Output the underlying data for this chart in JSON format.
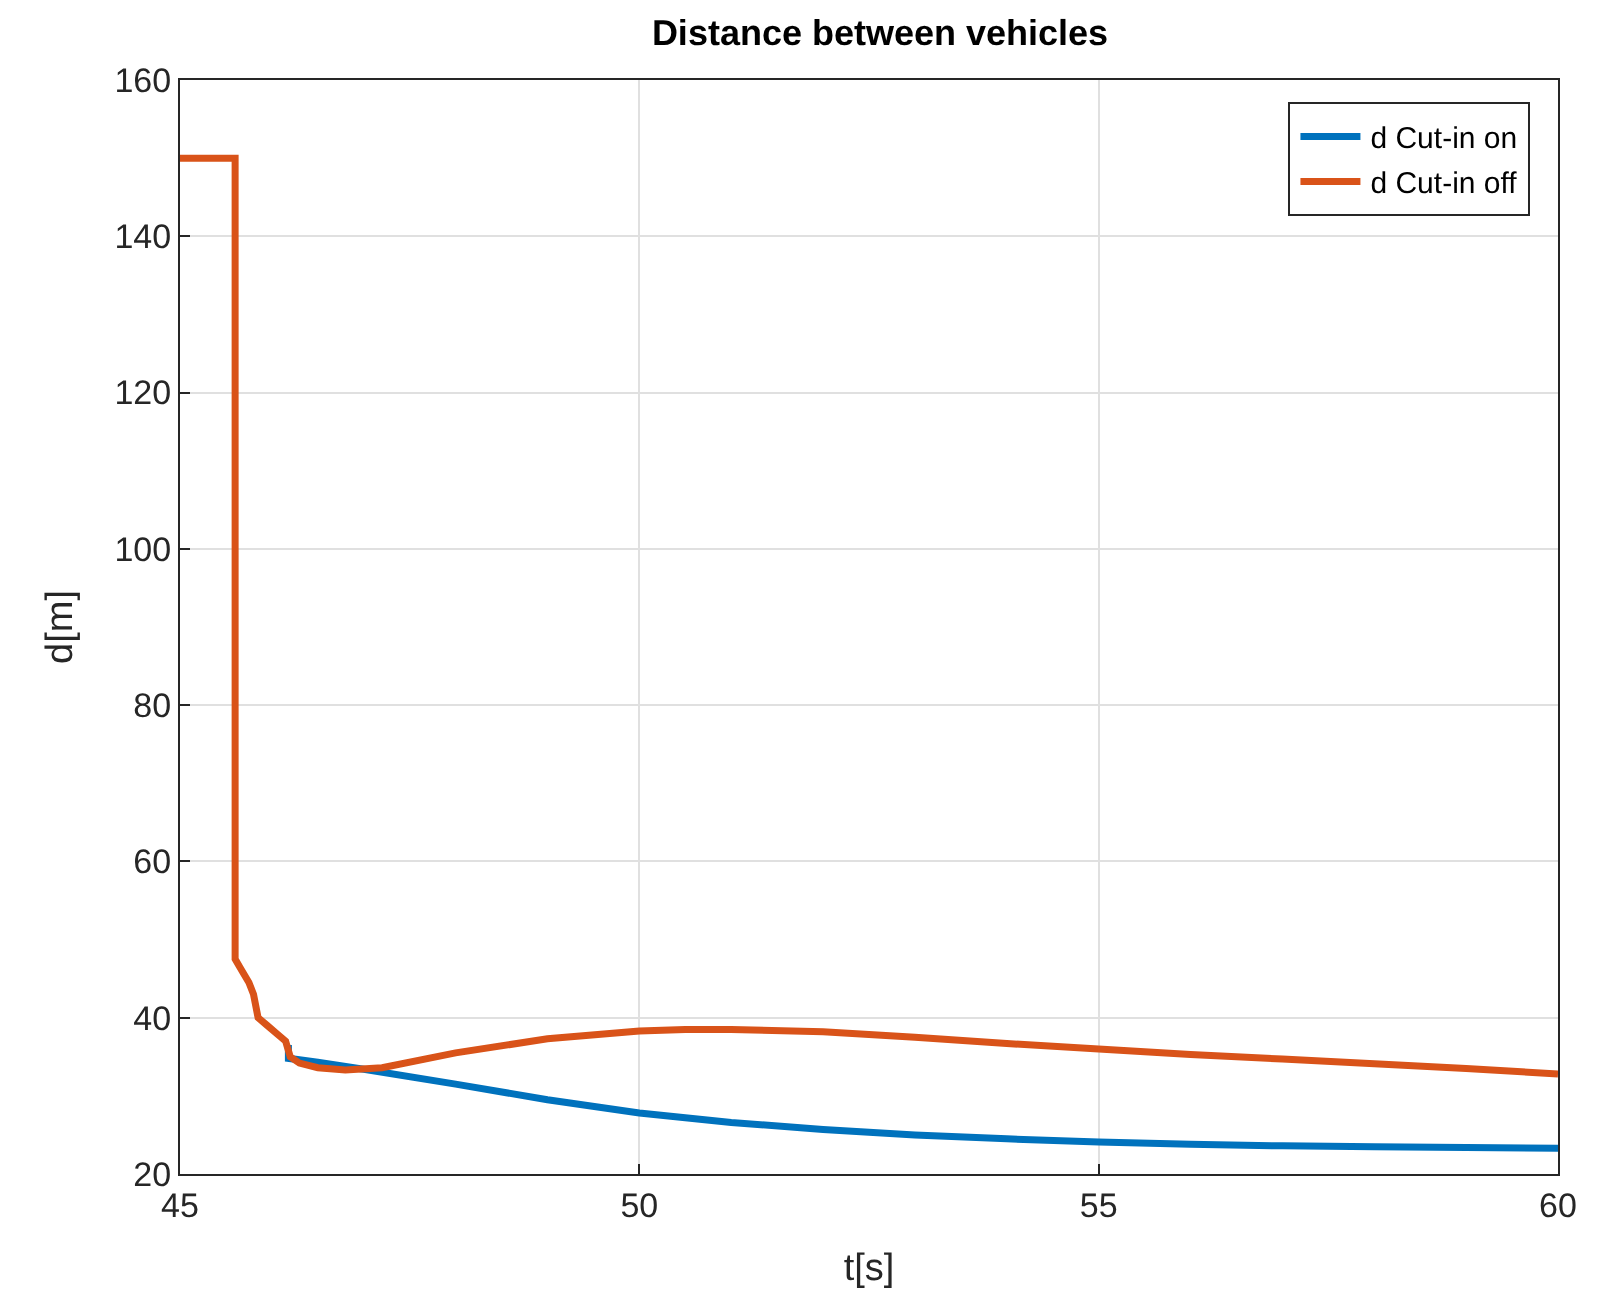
{
  "chart_data": {
    "type": "line",
    "title": "Distance between vehicles",
    "xlabel": "t[s]",
    "ylabel": "d[m]",
    "xlim": [
      45,
      60
    ],
    "xticks": [
      45,
      50,
      55,
      60
    ],
    "ylim": [
      20,
      160
    ],
    "yticks": [
      20,
      40,
      60,
      80,
      100,
      120,
      140,
      160
    ],
    "grid": true,
    "legend": "top right",
    "line_style": "solid",
    "series": [
      {
        "name": "d Cut-in on",
        "color": "#0072bd",
        "x": [
          46.18,
          46.18,
          46.5,
          47,
          48,
          49,
          50,
          51,
          52,
          53,
          54,
          55,
          56,
          57,
          58,
          59,
          60
        ],
        "values": [
          36.5,
          34.8,
          34.3,
          33.4,
          31.5,
          29.5,
          27.8,
          26.6,
          25.7,
          25,
          24.5,
          24.1,
          23.8,
          23.6,
          23.5,
          23.4,
          23.3
        ]
      },
      {
        "name": "d Cut-in off",
        "color": "#d95319",
        "x": [
          45,
          45.6,
          45.6,
          45.65,
          45.7,
          45.75,
          45.8,
          45.85,
          45.95,
          46.05,
          46.15,
          46.2,
          46.3,
          46.5,
          46.8,
          47.2,
          48,
          49,
          50,
          50.5,
          51,
          52,
          53,
          54,
          55,
          56,
          57,
          58,
          59,
          60
        ],
        "values": [
          150,
          150,
          47.5,
          46.5,
          45.5,
          44.5,
          43,
          40,
          39,
          38,
          37,
          35,
          34.2,
          33.6,
          33.3,
          33.6,
          35.5,
          37.3,
          38.3,
          38.5,
          38.5,
          38.2,
          37.5,
          36.7,
          36,
          35.3,
          34.7,
          34.1,
          33.5,
          32.8
        ]
      }
    ]
  }
}
